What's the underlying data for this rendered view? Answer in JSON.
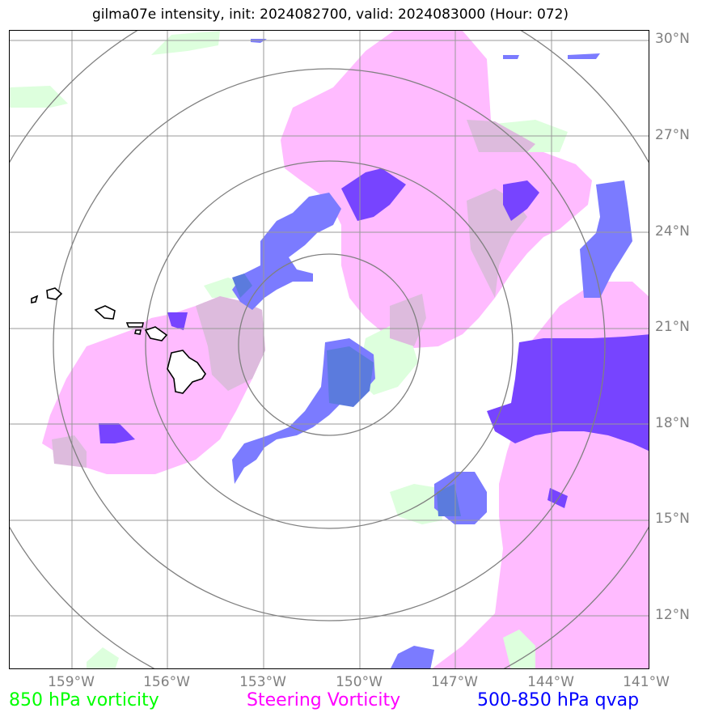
{
  "title": "gilma07e intensity, init: 2024082700, valid: 2024083000 (Hour: 072)",
  "lat_labels": [
    "30°N",
    "27°N",
    "24°N",
    "21°N",
    "18°N",
    "15°N",
    "12°N"
  ],
  "lon_labels": [
    "159°W",
    "156°W",
    "153°W",
    "150°W",
    "147°W",
    "144°W",
    "141°W"
  ],
  "legend": {
    "vort850": {
      "label": "850 hPa vorticity",
      "color": "#00ff00"
    },
    "steering": {
      "label": "Steering Vorticity",
      "color": "#ff00ff"
    },
    "qvap": {
      "label": "500-850 hPa qvap",
      "color": "#0000ff"
    }
  },
  "colors": {
    "steering_fill": "#ffbbff",
    "vort_fill": "#ddffdd",
    "qvap_fill": "#7b7bff",
    "qvap_dark": "#7744ff",
    "grid": "#999999",
    "rings": "#808080",
    "coast": "#000000"
  }
}
